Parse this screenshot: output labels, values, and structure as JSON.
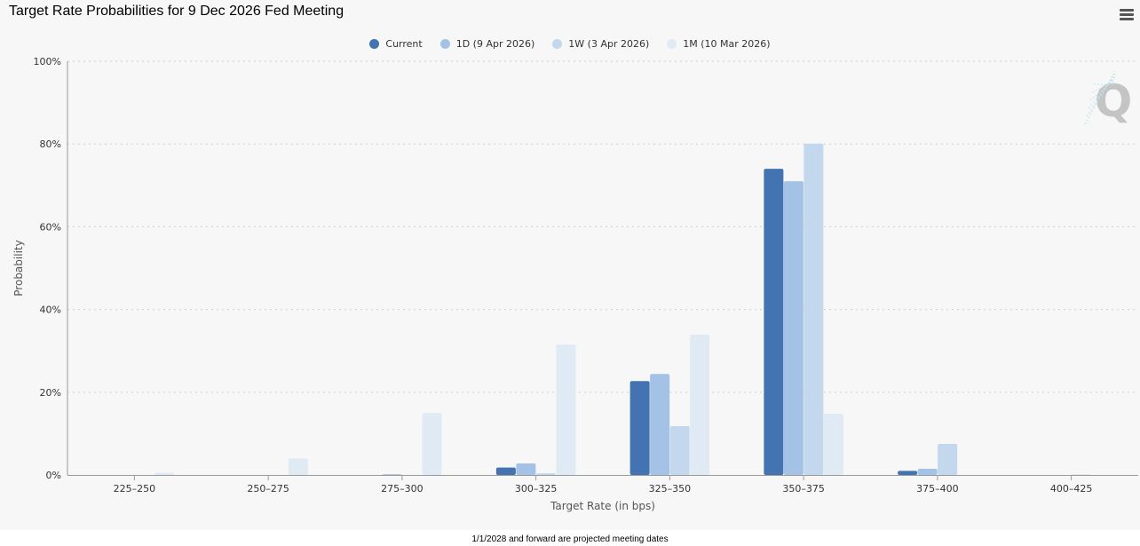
{
  "header": {
    "title": "Target Rate Probabilities for 9 Dec 2026 Fed Meeting",
    "menu_icon": "hamburger-menu-icon"
  },
  "watermark": {
    "letter": "Q",
    "icon": "quikstrike-logo-icon"
  },
  "footnote": "1/1/2028 and forward are projected meeting dates",
  "chart_data": {
    "type": "bar",
    "xlabel": "Target Rate (in bps)",
    "ylabel": "Probability",
    "ylim": [
      0,
      100
    ],
    "yticks": [
      "0%",
      "20%",
      "40%",
      "60%",
      "80%",
      "100%"
    ],
    "ytick_values": [
      0,
      20,
      40,
      60,
      80,
      100
    ],
    "grid": true,
    "legend_position": "top-center",
    "categories": [
      "225-250",
      "250-275",
      "275-300",
      "300-325",
      "325-350",
      "350-375",
      "375-400",
      "400-425"
    ],
    "series": [
      {
        "name": "Current",
        "color": "#4373b0",
        "values": [
          0,
          0,
          0,
          1.8,
          22.7,
          74.0,
          1.0,
          0
        ]
      },
      {
        "name": "1D (9 Apr 2026)",
        "color": "#a4c2e5",
        "values": [
          0,
          0,
          0.2,
          2.8,
          24.4,
          71.0,
          1.5,
          0
        ]
      },
      {
        "name": "1W (3 Apr 2026)",
        "color": "#c3d7ed",
        "values": [
          0,
          0,
          0,
          0.4,
          11.8,
          80.1,
          7.5,
          0.1
        ]
      },
      {
        "name": "1M (10 Mar 2026)",
        "color": "#e0eaf5",
        "values": [
          0.5,
          4.0,
          15.0,
          31.5,
          33.9,
          14.8,
          0,
          0
        ]
      }
    ]
  }
}
